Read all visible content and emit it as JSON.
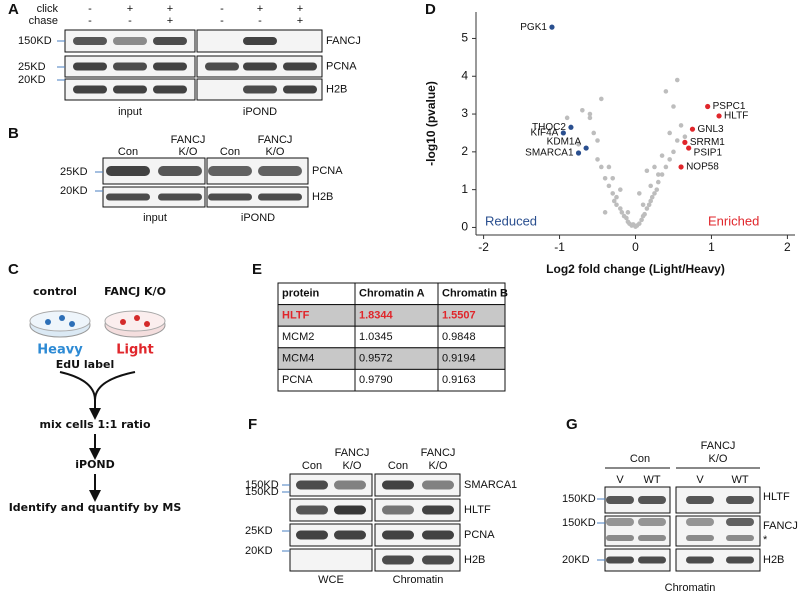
{
  "panel_a": {
    "letter": "A",
    "click": "click",
    "click_signs": [
      "-",
      "+",
      "+",
      "-",
      "+",
      "+"
    ],
    "chase": "chase",
    "chase_signs": [
      "-",
      "-",
      "+",
      "-",
      "-",
      "+"
    ],
    "mw": [
      "150KD",
      "25KD",
      "20KD"
    ],
    "proteins": [
      "FANCJ",
      "PCNA",
      "H2B"
    ],
    "groups": [
      "input",
      "iPOND"
    ]
  },
  "panel_b": {
    "letter": "B",
    "lanes": [
      "Con",
      "FANCJ",
      "K/O",
      "Con",
      "FANCJ",
      "K/O"
    ],
    "mw": [
      "25KD",
      "20KD"
    ],
    "proteins": [
      "PCNA",
      "H2B"
    ],
    "groups": [
      "input",
      "iPOND"
    ]
  },
  "panel_c": {
    "letter": "C",
    "control": "control",
    "knockout": "FANCJ K/O",
    "heavy": "Heavy",
    "light": "Light",
    "steps": [
      "EdU label",
      "mix cells 1:1 ratio",
      "iPOND",
      "Identify and quantify by MS"
    ]
  },
  "chart_data": {
    "type": "scatter",
    "letter": "D",
    "x_label": "Log2 fold change (Light/Heavy)",
    "y_label": "-log10 (pvalue)",
    "xlim": [
      -2.1,
      2.1
    ],
    "ylim": [
      -0.2,
      5.7
    ],
    "xticks": [
      -2,
      -1,
      0,
      1,
      2
    ],
    "yticks": [
      0,
      1,
      2,
      3,
      4,
      5
    ],
    "series": [
      {
        "color": "#bdbdbd",
        "x": [
          -0.9,
          -0.75,
          -0.6,
          -0.55,
          -0.5,
          -0.45,
          -0.4,
          -0.35,
          -0.3,
          -0.28,
          -0.25,
          -0.2,
          -0.18,
          -0.15,
          -0.12,
          -0.1,
          -0.08,
          -0.05,
          -0.03,
          0,
          0.02,
          0.05,
          0.08,
          0.1,
          0.12,
          0.15,
          0.18,
          0.2,
          0.22,
          0.25,
          0.28,
          0.3,
          0.35,
          0.4,
          0.45,
          0.5,
          0.55,
          0.6,
          0.65,
          -0.7,
          -0.5,
          -0.35,
          -0.2,
          0.1,
          0.3,
          0.45,
          -0.45,
          -0.6,
          0.2,
          0.35,
          0.5,
          0.4,
          -0.25,
          -0.4,
          0.15,
          -0.1,
          0.05,
          0.25,
          0.55,
          -0.3
        ],
        "values": [
          2.9,
          2.2,
          3.0,
          2.5,
          1.8,
          1.6,
          1.3,
          1.1,
          0.9,
          0.7,
          0.6,
          0.5,
          0.4,
          0.3,
          0.25,
          0.15,
          0.1,
          0.05,
          0.08,
          0.02,
          0.05,
          0.1,
          0.2,
          0.3,
          0.35,
          0.5,
          0.6,
          0.7,
          0.8,
          0.9,
          1.0,
          1.2,
          1.4,
          1.6,
          1.8,
          2.0,
          2.3,
          2.7,
          2.4,
          3.1,
          2.3,
          1.6,
          1.0,
          0.6,
          1.4,
          2.5,
          3.4,
          2.9,
          1.1,
          1.9,
          3.2,
          3.6,
          0.8,
          0.4,
          1.5,
          0.4,
          0.9,
          1.6,
          3.9,
          1.3
        ]
      },
      {
        "name": "Reduced",
        "color": "#2a4f8f",
        "x": [
          -1.1,
          -0.85,
          -0.95,
          -0.65,
          -0.75
        ],
        "values": [
          5.3,
          2.65,
          2.5,
          2.1,
          1.97
        ],
        "point_labels": [
          "PGK1",
          "THOC2",
          "KIF4A",
          "KDM1A",
          "SMARCA1"
        ]
      },
      {
        "name": "Enriched",
        "color": "#e0262b",
        "x": [
          0.95,
          1.1,
          0.75,
          0.65,
          0.7,
          0.6
        ],
        "values": [
          3.2,
          2.95,
          2.6,
          2.25,
          2.1,
          1.6
        ],
        "point_labels": [
          "PSPC1",
          "HLTF",
          "GNL3",
          "SRRM1",
          "PSIP1",
          "NOP58"
        ]
      }
    ]
  },
  "panel_e": {
    "letter": "E",
    "table": {
      "header": [
        "protein",
        "Chromatin A",
        "Chromatin B"
      ],
      "rows": [
        [
          "HLTF",
          "1.8344",
          "1.5507"
        ],
        [
          "MCM2",
          "1.0345",
          "0.9848"
        ],
        [
          "MCM4",
          "0.9572",
          "0.9194"
        ],
        [
          "PCNA",
          "0.9790",
          "0.9163"
        ]
      ]
    }
  },
  "panel_f": {
    "letter": "F",
    "lanes": [
      "Con",
      "FANCJ",
      "K/O",
      "Con",
      "FANCJ",
      "K/O"
    ],
    "mw": [
      "150KD",
      "150KD",
      "25KD",
      "20KD"
    ],
    "proteins": [
      "SMARCA1",
      "HLTF",
      "PCNA",
      "H2B"
    ],
    "groups": [
      "WCE",
      "Chromatin"
    ]
  },
  "panel_g": {
    "letter": "G",
    "conditions": [
      "Con",
      "FANCJ",
      "K/O"
    ],
    "lanes": [
      "V",
      "WT",
      "V",
      "WT"
    ],
    "mw": [
      "150KD",
      "150KD",
      "20KD"
    ],
    "proteins": [
      "HLTF",
      "FANCJ",
      "H2B"
    ],
    "asterisk": "*",
    "group": "Chromatin"
  }
}
